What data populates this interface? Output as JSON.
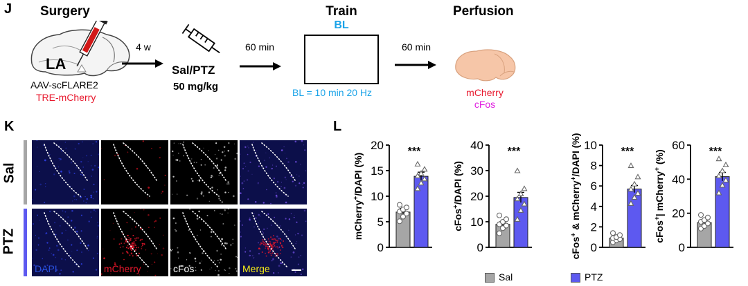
{
  "panel_j": {
    "letter": "J",
    "surgery": "Surgery",
    "la": "LA",
    "virus1": "AAV-scFLARE2",
    "virus2": "TRE-mCherry",
    "delay1": "4 w",
    "drug": "Sal/PTZ",
    "dose": "50 mg/kg",
    "delay2": "60 min",
    "train": "Train",
    "bl": "BL",
    "bl_detail": "BL = 10 min 20 Hz",
    "delay3": "60 min",
    "perfusion": "Perfusion",
    "stain1": "mCherry",
    "stain2": "cFos"
  },
  "panel_k": {
    "letter": "K",
    "row1": "Sal",
    "row2": "PTZ",
    "ch_dapi": "DAPI",
    "ch_mcherry": "mCherry",
    "ch_cfos": "cFos",
    "ch_merge": "Merge"
  },
  "panel_l": {
    "letter": "L",
    "legend": [
      {
        "label": "Sal",
        "color": "#a6a6a6"
      },
      {
        "label": "PTZ",
        "color": "#5d59f0"
      }
    ]
  },
  "colors": {
    "sal": "#a6a6a6",
    "ptz": "#5d59f0",
    "red": "#e8182d",
    "cyan": "#1aa3e8",
    "magenta": "#e020e0"
  },
  "chart_data": [
    {
      "type": "bar",
      "ylabel_parts": [
        "mCherry",
        "+",
        "/DAPI (%)"
      ],
      "ylim": [
        0,
        20
      ],
      "yticks": [
        "0",
        "5",
        "10",
        "15",
        "20"
      ],
      "categories": [
        "Sal",
        "PTZ"
      ],
      "values": [
        6.9,
        13.9
      ],
      "errors": [
        0.7,
        0.8
      ],
      "points": [
        [
          5.1,
          6.0,
          6.6,
          7.0,
          7.4,
          7.8,
          8.3
        ],
        [
          11.5,
          12.6,
          13.4,
          14.0,
          14.5,
          15.3,
          16.3
        ]
      ],
      "significance": "***"
    },
    {
      "type": "bar",
      "ylabel_parts": [
        "cFos",
        "+",
        "/DAPI (%)"
      ],
      "ylim": [
        0,
        40
      ],
      "yticks": [
        "0",
        "10",
        "20",
        "30",
        "40"
      ],
      "categories": [
        "Sal",
        "PTZ"
      ],
      "values": [
        9,
        19.5
      ],
      "errors": [
        1.0,
        2.0
      ],
      "points": [
        [
          5.5,
          7.5,
          8.5,
          9.0,
          10.0,
          11.0,
          12.5
        ],
        [
          11.0,
          14.5,
          17.0,
          19.0,
          21.0,
          23.0,
          30.0
        ]
      ],
      "significance": "***"
    },
    {
      "type": "bar",
      "ylabel_parts": [
        "cFos",
        "+",
        " & mCherry",
        "+",
        "/DAPI (%)"
      ],
      "ylim": [
        0,
        10
      ],
      "yticks": [
        "0",
        "2",
        "4",
        "6",
        "8",
        "10"
      ],
      "categories": [
        "Sal",
        "PTZ"
      ],
      "values": [
        0.9,
        5.7
      ],
      "errors": [
        0.15,
        0.35
      ],
      "points": [
        [
          0.5,
          0.7,
          0.8,
          0.9,
          1.0,
          1.2,
          1.4
        ],
        [
          4.3,
          4.9,
          5.3,
          5.7,
          6.2,
          6.9,
          8.0
        ]
      ],
      "significance": "***"
    },
    {
      "type": "bar",
      "ylabel_parts": [
        "cFos",
        "+",
        "| mCherry",
        "+",
        " (%)"
      ],
      "ylim": [
        0,
        60
      ],
      "yticks": [
        "0",
        "20",
        "40",
        "60"
      ],
      "categories": [
        "Sal",
        "PTZ"
      ],
      "values": [
        14.5,
        41.5
      ],
      "errors": [
        1.5,
        2.5
      ],
      "points": [
        [
          11.0,
          12.5,
          14.0,
          15.0,
          16.0,
          17.5,
          19.0
        ],
        [
          32.0,
          36.5,
          39.5,
          42.0,
          45.0,
          48.5,
          52.0
        ]
      ],
      "significance": "***"
    }
  ]
}
